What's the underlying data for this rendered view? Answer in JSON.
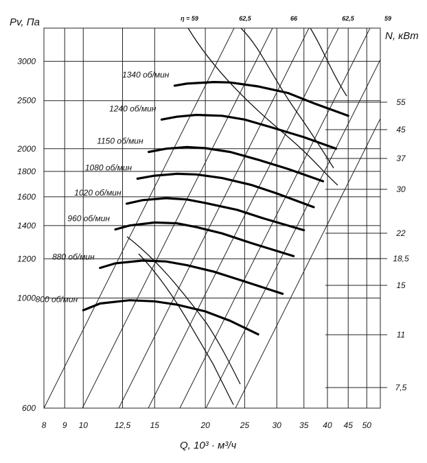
{
  "chart_data": {
    "type": "line",
    "ylabel": "Pv, Па",
    "xlabel": "Q, 10³ · м³/ч",
    "y2label": "N, кВт",
    "xscale": "log",
    "yscale": "log",
    "xlim": [
      8,
      54
    ],
    "ylim": [
      600,
      3500
    ],
    "grid": true,
    "x_ticks": [
      {
        "v": 8,
        "t": "8"
      },
      {
        "v": 9,
        "t": "9"
      },
      {
        "v": 10,
        "t": "10"
      },
      {
        "v": 12.5,
        "t": "12,5"
      },
      {
        "v": 15,
        "t": "15"
      },
      {
        "v": 20,
        "t": "20"
      },
      {
        "v": 25,
        "t": "25"
      },
      {
        "v": 30,
        "t": "30"
      },
      {
        "v": 35,
        "t": "35"
      },
      {
        "v": 40,
        "t": "40"
      },
      {
        "v": 45,
        "t": "45"
      },
      {
        "v": 50,
        "t": "50"
      }
    ],
    "y_ticks": [
      {
        "v": 600,
        "t": "600"
      },
      {
        "v": 1000,
        "t": "1000"
      },
      {
        "v": 1200,
        "t": "1200"
      },
      {
        "v": 1400,
        "t": "1400"
      },
      {
        "v": 1600,
        "t": "1600"
      },
      {
        "v": 1800,
        "t": "1800"
      },
      {
        "v": 2000,
        "t": "2000"
      },
      {
        "v": 2500,
        "t": "2500"
      },
      {
        "v": 3000,
        "t": "3000"
      }
    ],
    "series": [
      {
        "name": "800 об/мин",
        "x": [
          10,
          11,
          13,
          15,
          17,
          20,
          23,
          27
        ],
        "y": [
          945,
          975,
          990,
          985,
          970,
          940,
          900,
          845
        ]
      },
      {
        "name": "880 об/мин",
        "x": [
          11,
          12,
          14,
          16,
          18,
          21,
          25,
          31
        ],
        "y": [
          1150,
          1175,
          1190,
          1185,
          1165,
          1130,
          1080,
          1020
        ]
      },
      {
        "name": "960 об/мин",
        "x": [
          12,
          13,
          15,
          17,
          19,
          22,
          26,
          33
        ],
        "y": [
          1375,
          1400,
          1420,
          1415,
          1390,
          1350,
          1290,
          1215
        ]
      },
      {
        "name": "1020 об/мин",
        "x": [
          12.8,
          14,
          16,
          18,
          20,
          24,
          28,
          35
        ],
        "y": [
          1550,
          1575,
          1590,
          1580,
          1555,
          1505,
          1445,
          1370
        ]
      },
      {
        "name": "1080 об/мин",
        "x": [
          13.6,
          15,
          17,
          19,
          22,
          26,
          30,
          37
        ],
        "y": [
          1740,
          1765,
          1780,
          1775,
          1745,
          1690,
          1625,
          1525
        ]
      },
      {
        "name": "1150 об/мин",
        "x": [
          14.5,
          16,
          18,
          20,
          23,
          27,
          32,
          39
        ],
        "y": [
          1970,
          2000,
          2015,
          2005,
          1970,
          1900,
          1820,
          1720
        ]
      },
      {
        "name": "1240 об/мин",
        "x": [
          15.6,
          17,
          19,
          22,
          25,
          29,
          35,
          42
        ],
        "y": [
          2290,
          2320,
          2340,
          2330,
          2290,
          2210,
          2110,
          2000
        ]
      },
      {
        "name": "1340 об/мин",
        "x": [
          16.8,
          18,
          21,
          23,
          27,
          32,
          37,
          45
        ],
        "y": [
          2680,
          2705,
          2725,
          2720,
          2670,
          2590,
          2470,
          2330
        ]
      }
    ],
    "efficiency_labels": [
      "η = 59",
      "62,5",
      "66",
      "62,5",
      "59"
    ],
    "power_values": [
      {
        "v": 55,
        "t": "55"
      },
      {
        "v": 45,
        "t": "45"
      },
      {
        "v": 37,
        "t": "37"
      },
      {
        "v": 30,
        "t": "30"
      },
      {
        "v": 22,
        "t": "22"
      },
      {
        "v": 18.5,
        "t": "18,5"
      },
      {
        "v": 15,
        "t": "15"
      },
      {
        "v": 11,
        "t": "11"
      },
      {
        "v": 7.5,
        "t": "7,5"
      }
    ]
  }
}
